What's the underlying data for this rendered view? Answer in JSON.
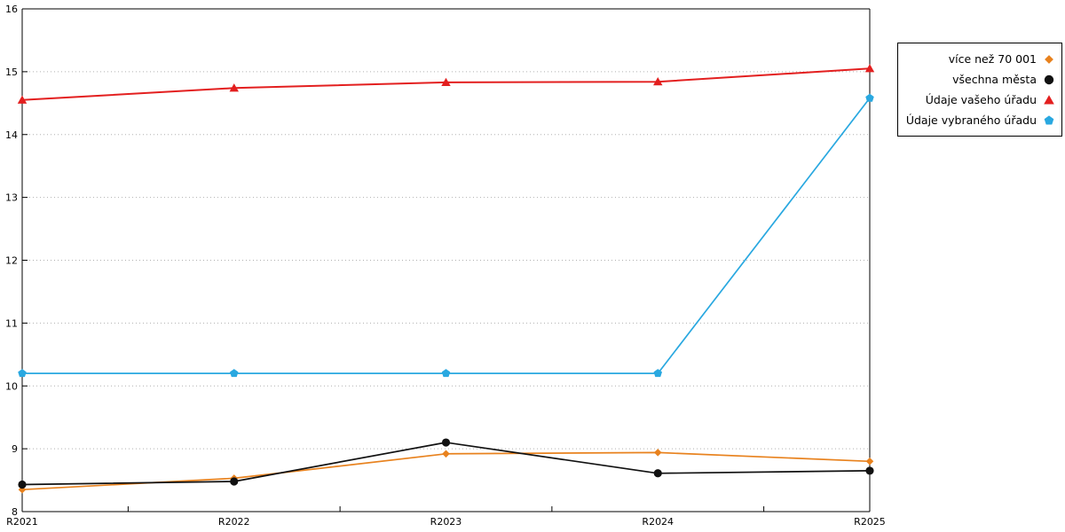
{
  "chart_data": {
    "type": "line",
    "title": "",
    "xlabel": "",
    "ylabel": "",
    "categories": [
      "R2021",
      "R2022",
      "R2023",
      "R2024",
      "R2025"
    ],
    "series": [
      {
        "name": "více než 70 001",
        "color": "#e8821e",
        "marker": "diamond",
        "values": [
          8.35,
          8.53,
          8.92,
          8.94,
          8.8
        ]
      },
      {
        "name": "všechna města",
        "color": "#111111",
        "marker": "circle",
        "values": [
          8.43,
          8.48,
          9.1,
          8.61,
          8.65
        ]
      },
      {
        "name": "Údaje vašeho úřadu",
        "color": "#e31f1f",
        "marker": "triangle",
        "values": [
          14.55,
          14.74,
          14.83,
          14.84,
          15.05
        ]
      },
      {
        "name": "Údaje vybraného úřadu",
        "color": "#29a8e0",
        "marker": "pentagon",
        "values": [
          10.2,
          10.2,
          10.2,
          10.2,
          14.58
        ]
      }
    ],
    "ylim": [
      8,
      16
    ],
    "yticks": [
      8,
      9,
      10,
      11,
      12,
      13,
      14,
      15,
      16
    ],
    "grid": "horizontal-dotted",
    "grid_color": "#b0b0b0",
    "frame_color": "#000000",
    "legend_position": "top-right-outside"
  }
}
